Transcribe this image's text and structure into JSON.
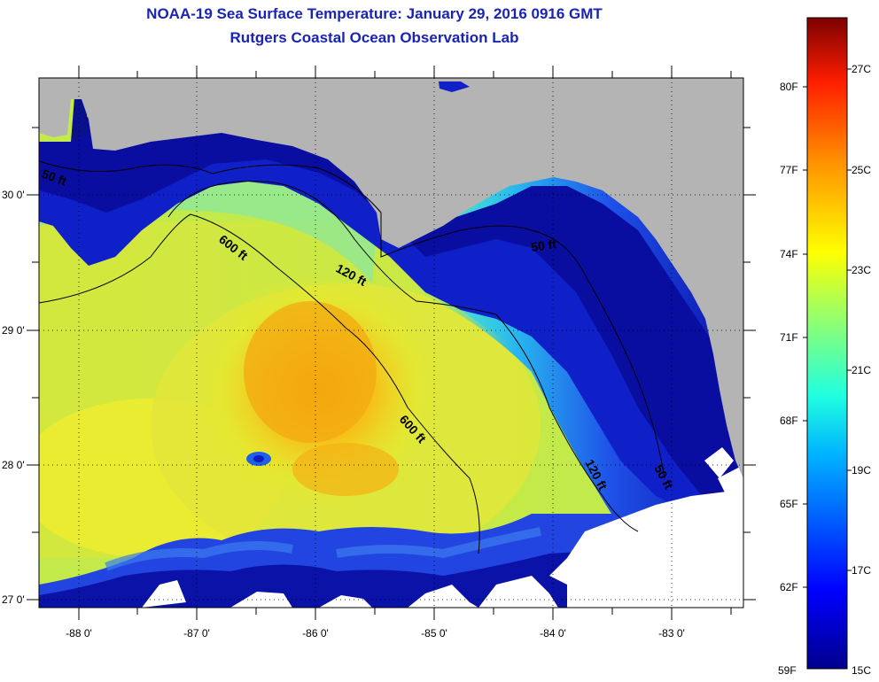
{
  "header": {
    "title": "NOAA-19 Sea Surface Temperature:  January 29, 2016 0916 GMT",
    "subtitle": "Rutgers Coastal Ocean Observation Lab"
  },
  "map": {
    "lat_labels": [
      "30 0'",
      "29 0'",
      "28 0'",
      "27 0'"
    ],
    "lon_labels": [
      "-88 0'",
      "-87 0'",
      "-86 0'",
      "-85 0'",
      "-84 0'",
      "-83 0'"
    ],
    "contours": [
      "50 ft",
      "600 ft",
      "120 ft",
      "600 ft",
      "50 ft",
      "120 ft",
      "50 ft"
    ]
  },
  "colorbar": {
    "fahrenheit": [
      "80F",
      "77F",
      "74F",
      "71F",
      "68F",
      "65F",
      "62F",
      "59F"
    ],
    "celsius": [
      "27C",
      "25C",
      "23C",
      "21C",
      "19C",
      "17C",
      "15C"
    ]
  },
  "colors": {
    "land": "#b4b4b4",
    "title": "#1a24b4",
    "cold": "#00008c",
    "warm": "#f4a000"
  }
}
